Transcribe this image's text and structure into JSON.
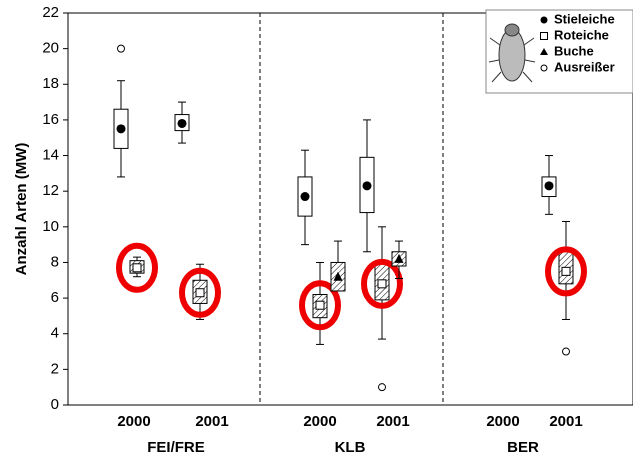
{
  "chart_data": {
    "type": "box",
    "y_label": "Anzahl Arten (MW)",
    "groups": [
      "FEI/FRE",
      "KLB",
      "BER"
    ],
    "x_labels": [
      "2000",
      "2001",
      "2000",
      "2001",
      "2000",
      "2001"
    ],
    "ylim": [
      0,
      22
    ],
    "yticks": [
      0,
      2,
      4,
      6,
      8,
      10,
      12,
      14,
      16,
      18,
      20,
      22
    ],
    "outlier_label": "Ausreißer",
    "series": [
      {
        "name": "Stieleiche",
        "marker": "circle",
        "color": "#000000",
        "boxes": [
          {
            "low": 12.8,
            "q1": 14.4,
            "mid": 15.5,
            "q3": 16.6,
            "high": 18.2
          },
          {
            "low": 14.7,
            "q1": 15.4,
            "mid": 15.8,
            "q3": 16.3,
            "high": 17
          },
          {
            "low": 9,
            "q1": 10.6,
            "mid": 11.7,
            "q3": 12.8,
            "high": 14.3
          },
          {
            "low": 8.6,
            "q1": 10.8,
            "mid": 12.3,
            "q3": 13.9,
            "high": 16
          },
          null,
          {
            "low": 10.7,
            "q1": 11.7,
            "mid": 12.3,
            "q3": 12.8,
            "high": 14
          }
        ],
        "outliers": [
          [
            20
          ],
          null,
          null,
          null,
          null,
          null
        ]
      },
      {
        "name": "Roteiche",
        "marker": "square",
        "color": "#000000",
        "boxes": [
          {
            "low": 7.2,
            "q1": 7.4,
            "mid": 7.7,
            "q3": 8.1,
            "high": 8.3
          },
          {
            "low": 4.8,
            "q1": 5.7,
            "mid": 6.3,
            "q3": 7,
            "high": 7.9
          },
          {
            "low": 3.4,
            "q1": 4.9,
            "mid": 5.6,
            "q3": 6.2,
            "high": 8
          },
          {
            "low": 3.7,
            "q1": 5.9,
            "mid": 6.8,
            "q3": 8,
            "high": 10
          },
          null,
          {
            "low": 4.8,
            "q1": 6.8,
            "mid": 7.5,
            "q3": 8.6,
            "high": 10.3
          }
        ],
        "outliers": [
          null,
          null,
          null,
          [
            1
          ],
          null,
          [
            3
          ]
        ]
      },
      {
        "name": "Buche",
        "marker": "triangle",
        "color": "#000000",
        "boxes": [
          null,
          null,
          {
            "low": 6.4,
            "q1": 6.4,
            "mid": 7.2,
            "q3": 8,
            "high": 9.2
          },
          {
            "low": 7.1,
            "q1": 7.8,
            "mid": 8.2,
            "q3": 8.6,
            "high": 9.2
          },
          null,
          null
        ],
        "outliers": [
          null,
          null,
          null,
          null,
          null,
          null
        ]
      }
    ]
  }
}
